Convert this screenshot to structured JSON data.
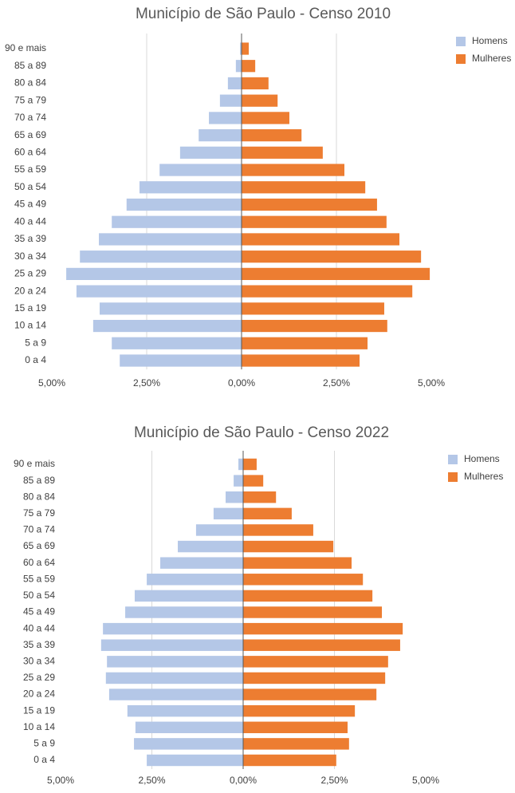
{
  "chart_data": [
    {
      "type": "pyramid",
      "title": "Município de São Paulo - Censo 2010",
      "categories": [
        "0 a 4",
        "5 a 9",
        "10 a 14",
        "15 a 19",
        "20 a 24",
        "25 a 29",
        "30 a 34",
        "35 a 39",
        "40 a 44",
        "45 a 49",
        "50 a 54",
        "55 a 59",
        "60 a 64",
        "65 a 69",
        "70 a 74",
        "75 a 79",
        "80 a 84",
        "85 a 89",
        "90 e mais"
      ],
      "series": [
        {
          "name": "Homens",
          "color": "#b4c7e7",
          "values": [
            -3.21,
            -3.42,
            -3.91,
            -3.74,
            -4.35,
            -4.62,
            -4.26,
            -3.76,
            -3.42,
            -3.03,
            -2.69,
            -2.16,
            -1.62,
            -1.13,
            -0.86,
            -0.57,
            -0.36,
            -0.15,
            -0.04
          ]
        },
        {
          "name": "Mulheres",
          "color": "#ed7d31",
          "values": [
            3.11,
            3.32,
            3.84,
            3.76,
            4.5,
            4.96,
            4.73,
            4.16,
            3.82,
            3.57,
            3.26,
            2.71,
            2.14,
            1.58,
            1.26,
            0.95,
            0.71,
            0.36,
            0.19
          ]
        }
      ],
      "xlim": [
        -5,
        5
      ],
      "xticks": [
        {
          "value": -5,
          "label": "5,00%"
        },
        {
          "value": -2.5,
          "label": "2,50%"
        },
        {
          "value": 0,
          "label": "0,00%"
        },
        {
          "value": 2.5,
          "label": "2,50%"
        },
        {
          "value": 5,
          "label": "5,00%"
        }
      ],
      "grid": true,
      "legend": "top-right"
    },
    {
      "type": "pyramid",
      "title": "Município de São Paulo - Censo 2022",
      "categories": [
        "0 a 4",
        "5 a 9",
        "10 a 14",
        "15 a 19",
        "20 a 24",
        "25 a 29",
        "30 a 34",
        "35 a 39",
        "40 a 44",
        "45 a 49",
        "50 a 54",
        "55 a 59",
        "60 a 64",
        "65 a 69",
        "70 a 74",
        "75 a 79",
        "80 a 84",
        "85 a 89",
        "90 e mais"
      ],
      "series": [
        {
          "name": "Homens",
          "color": "#b4c7e7",
          "values": [
            -2.64,
            -2.99,
            -2.95,
            -3.17,
            -3.67,
            -3.76,
            -3.73,
            -3.89,
            -3.84,
            -3.23,
            -2.97,
            -2.64,
            -2.27,
            -1.79,
            -1.29,
            -0.81,
            -0.48,
            -0.26,
            -0.13
          ]
        },
        {
          "name": "Mulheres",
          "color": "#ed7d31",
          "values": [
            2.55,
            2.9,
            2.86,
            3.06,
            3.65,
            3.89,
            3.97,
            4.3,
            4.37,
            3.8,
            3.54,
            3.28,
            2.97,
            2.47,
            1.92,
            1.33,
            0.9,
            0.55,
            0.37
          ]
        }
      ],
      "xlim": [
        -5,
        5
      ],
      "xticks": [
        {
          "value": -5,
          "label": "5,00%"
        },
        {
          "value": -2.5,
          "label": "2,50%"
        },
        {
          "value": 0,
          "label": "0,00%"
        },
        {
          "value": 2.5,
          "label": "2,50%"
        },
        {
          "value": 5,
          "label": "5,00%"
        }
      ],
      "grid": true,
      "legend": "top-right"
    }
  ]
}
